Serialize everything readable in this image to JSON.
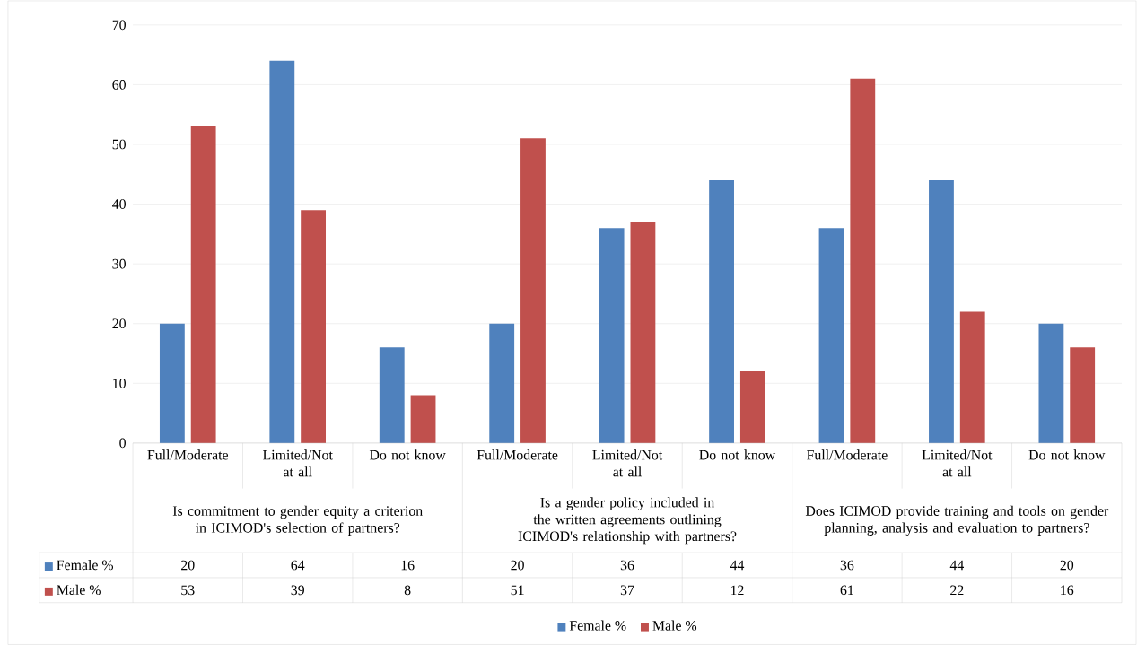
{
  "chart_data": {
    "type": "bar",
    "categories": [
      "Full/Moderate",
      "Limited/Not at all",
      "Do not know",
      "Full/Moderate",
      "Limited/Not at all",
      "Do not know",
      "Full/Moderate",
      "Limited/Not at all",
      "Do not know"
    ],
    "series": [
      {
        "name": "Female %",
        "color": "#4f81bd",
        "values": [
          20,
          64,
          16,
          20,
          36,
          44,
          36,
          44,
          20
        ]
      },
      {
        "name": "Male %",
        "color": "#c0504d",
        "values": [
          53,
          39,
          8,
          51,
          37,
          12,
          61,
          22,
          16
        ]
      }
    ],
    "annotations": [
      "Is commitment to gender equity a criterion in ICIMOD's selection of partners?",
      "Is a gender policy included in the written agreements outlining ICIMOD's relationship with partners?",
      "Does ICIMOD provide training and tools on gender planning, analysis and evaluation to partners?"
    ],
    "ylim": [
      0,
      70
    ],
    "yticks": [
      0,
      10,
      20,
      30,
      40,
      50,
      60,
      70
    ],
    "grid": "y",
    "legend": "bottom",
    "data_labels": true
  }
}
